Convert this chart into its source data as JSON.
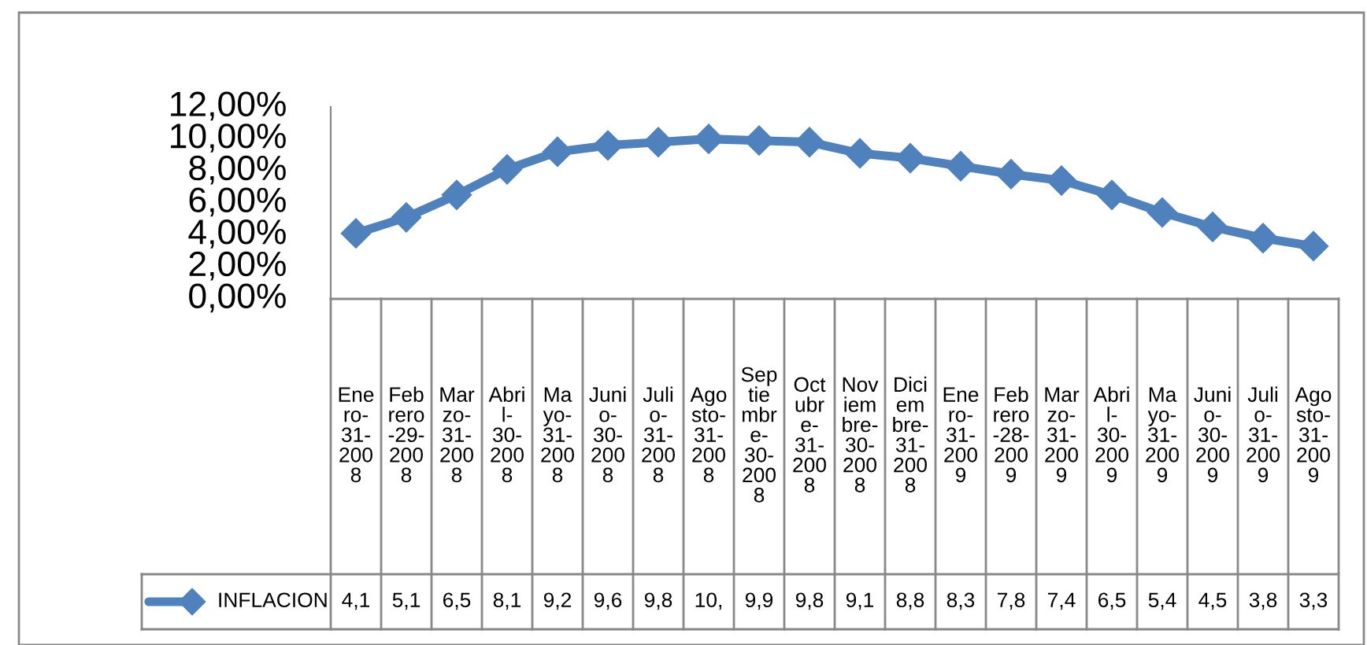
{
  "chart_data": {
    "type": "line",
    "categories": [
      "Ene\nro-\n31-\n200\n8",
      "Feb\nrero\n-29-\n200\n8",
      "Mar\nzo-\n31-\n200\n8",
      "Abri\nl-\n30-\n200\n8",
      "Ma\nyo-\n31-\n200\n8",
      "Juni\no-\n30-\n200\n8",
      "Juli\no-\n31-\n200\n8",
      "Ago\nsto-\n31-\n200\n8",
      "Sep\ntie\nmbr\ne-\n30-\n200\n8",
      "Oct\nubr\ne-\n31-\n200\n8",
      "Nov\niem\nbre-\n30-\n200\n8",
      "Dici\nem\nbre-\n31-\n200\n8",
      "Ene\nro-\n31-\n200\n9",
      "Feb\nrero\n-28-\n200\n9",
      "Mar\nzo-\n31-\n200\n9",
      "Abri\nl-\n30-\n200\n9",
      "Ma\nyo-\n31-\n200\n9",
      "Juni\no-\n30-\n200\n9",
      "Juli\no-\n31-\n200\n9",
      "Ago\nsto-\n31-\n200\n9"
    ],
    "series": [
      {
        "name": "INFLACION",
        "color": "#4f81bd",
        "values": [
          4.1,
          5.1,
          6.5,
          8.1,
          9.2,
          9.6,
          9.8,
          10.0,
          9.9,
          9.8,
          9.1,
          8.8,
          8.3,
          7.8,
          7.4,
          6.5,
          5.4,
          4.5,
          3.8,
          3.3
        ],
        "value_labels": [
          "4,1",
          "5,1",
          "6,5",
          "8,1",
          "9,2",
          "9,6",
          "9,8",
          "10,",
          "9,9",
          "9,8",
          "9,1",
          "8,8",
          "8,3",
          "7,8",
          "7,4",
          "6,5",
          "5,4",
          "4,5",
          "3,8",
          "3,3"
        ]
      }
    ],
    "ylim": [
      0,
      12
    ],
    "yticks": [
      {
        "value": 0,
        "label": "0,00%"
      },
      {
        "value": 2,
        "label": "2,00%"
      },
      {
        "value": 4,
        "label": "4,00%"
      },
      {
        "value": 6,
        "label": "6,00%"
      },
      {
        "value": 8,
        "label": "8,00%"
      },
      {
        "value": 10,
        "label": "10,00%"
      },
      {
        "value": 12,
        "label": "12,00%"
      }
    ],
    "marker": "diamond",
    "line_style": "solid",
    "grid": false,
    "legend": "bottom"
  }
}
